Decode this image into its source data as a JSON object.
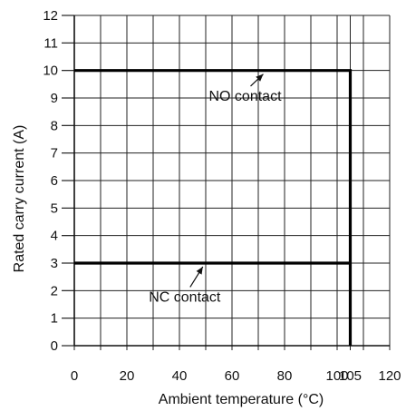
{
  "chart_data": {
    "type": "line",
    "title": "",
    "xlabel": "Ambient temperature (°C)",
    "ylabel": "Rated carry current (A)",
    "xlim": [
      0,
      120
    ],
    "ylim": [
      0,
      12
    ],
    "x_ticks": [
      0,
      20,
      40,
      60,
      80,
      100,
      105,
      120
    ],
    "x_grid": [
      0,
      10,
      20,
      30,
      40,
      50,
      60,
      70,
      80,
      90,
      100,
      105,
      110,
      120
    ],
    "y_ticks": [
      0,
      1,
      2,
      3,
      4,
      5,
      6,
      7,
      8,
      9,
      10,
      11,
      12
    ],
    "grid": true,
    "series": [
      {
        "name": "NO contact",
        "x": [
          0,
          105,
          105
        ],
        "y": [
          10,
          10,
          0
        ]
      },
      {
        "name": "NC contact",
        "x": [
          0,
          105
        ],
        "y": [
          3,
          3
        ]
      }
    ],
    "annotations": [
      {
        "text": "NO contact",
        "at": [
          65,
          9.1
        ],
        "arrow_to": [
          65,
          10
        ]
      },
      {
        "text": "NC contact",
        "at": [
          42,
          1.8
        ],
        "arrow_to": [
          42,
          3
        ]
      }
    ]
  }
}
